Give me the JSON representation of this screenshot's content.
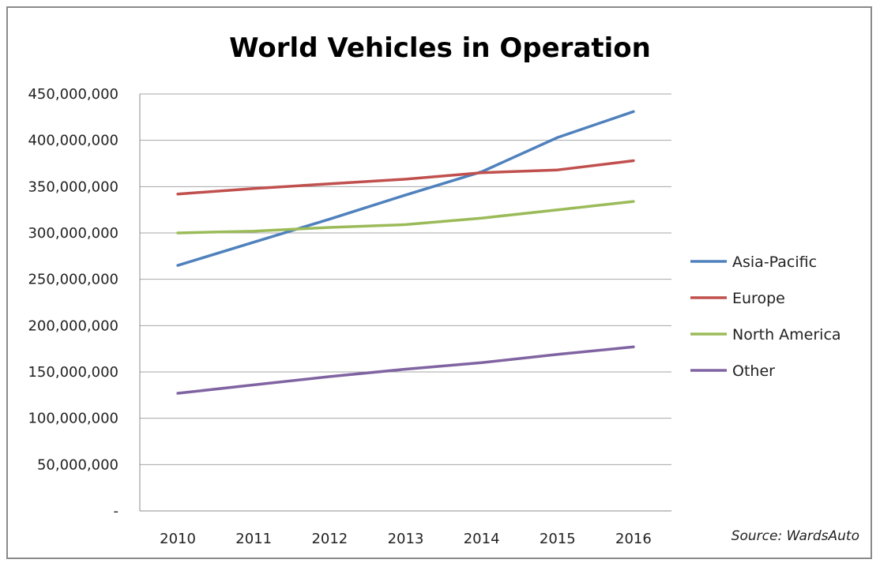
{
  "chart_data": {
    "type": "line",
    "title": "World Vehicles in Operation",
    "xlabel": "",
    "ylabel": "",
    "categories": [
      "2010",
      "2011",
      "2012",
      "2013",
      "2014",
      "2015",
      "2016"
    ],
    "ylim": [
      0,
      450000000
    ],
    "yticks": [
      0,
      50000000,
      100000000,
      150000000,
      200000000,
      250000000,
      300000000,
      350000000,
      400000000,
      450000000
    ],
    "ytick_labels": [
      "-",
      "50,000,000",
      "100,000,000",
      "150,000,000",
      "200,000,000",
      "250,000,000",
      "300,000,000",
      "350,000,000",
      "400,000,000",
      "450,000,000"
    ],
    "grid": "horizontal",
    "legend_position": "right",
    "series": [
      {
        "name": "Asia-Pacific",
        "color": "#4f81bd",
        "values": [
          265000000,
          290000000,
          315000000,
          341000000,
          366000000,
          403000000,
          431000000
        ]
      },
      {
        "name": "Europe",
        "color": "#c0504d",
        "values": [
          342000000,
          348000000,
          353000000,
          358000000,
          365000000,
          368000000,
          378000000
        ]
      },
      {
        "name": "North America",
        "color": "#9bbb59",
        "values": [
          300000000,
          302000000,
          306000000,
          309000000,
          316000000,
          325000000,
          334000000
        ]
      },
      {
        "name": "Other",
        "color": "#8064a2",
        "values": [
          127000000,
          136000000,
          145000000,
          153000000,
          160000000,
          169000000,
          177000000
        ]
      }
    ],
    "annotation": "Source: WardsAuto"
  }
}
